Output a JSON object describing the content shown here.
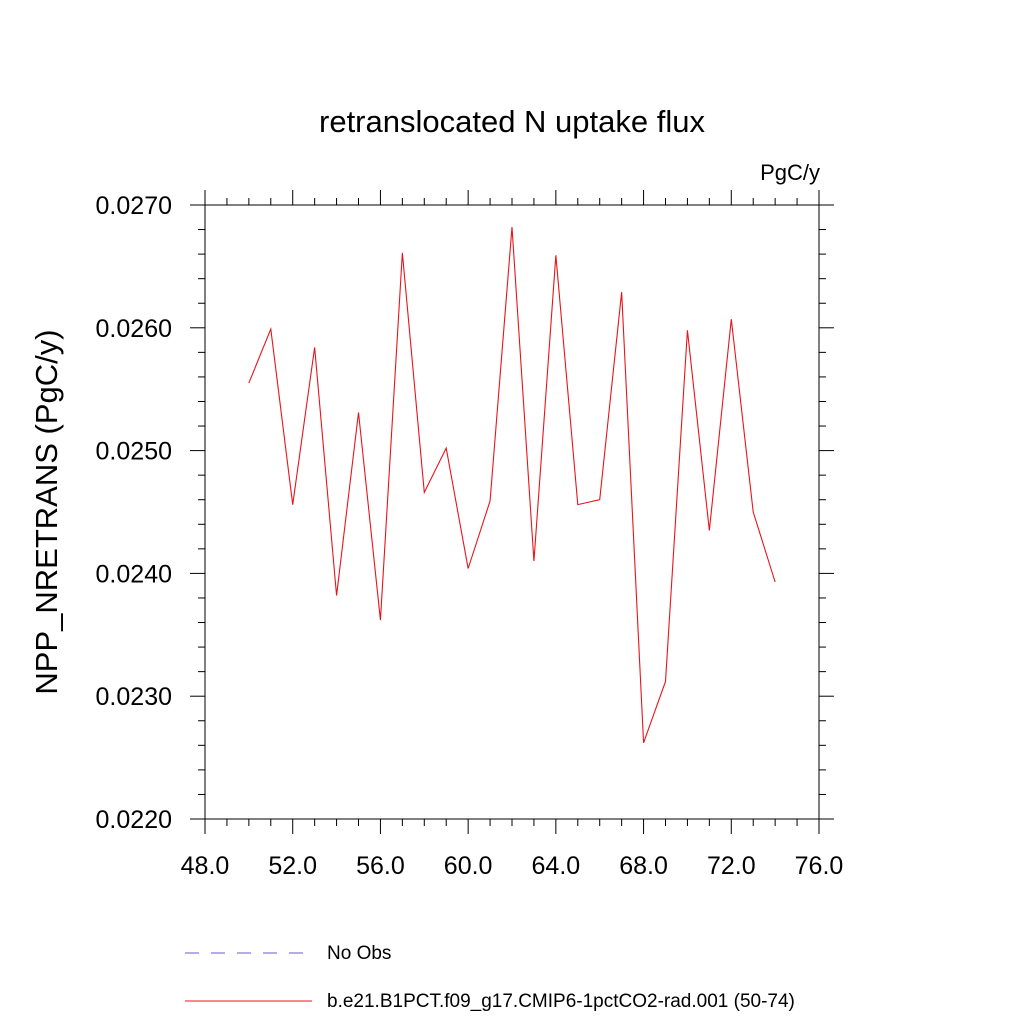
{
  "chart_data": {
    "type": "line",
    "title": "retranslocated N uptake flux",
    "units_label": "PgC/y",
    "ylabel": "NPP_NRETRANS  (PgC/y)",
    "xlabel": "",
    "xlim": [
      48,
      76
    ],
    "ylim": [
      0.022,
      0.027
    ],
    "x_ticks": [
      48,
      52,
      56,
      60,
      64,
      68,
      72,
      76
    ],
    "x_tick_labels": [
      "48.0",
      "52.0",
      "56.0",
      "60.0",
      "64.0",
      "68.0",
      "72.0",
      "76.0"
    ],
    "y_ticks": [
      0.022,
      0.023,
      0.024,
      0.025,
      0.026,
      0.027
    ],
    "y_tick_labels": [
      "0.0220",
      "0.0230",
      "0.0240",
      "0.0250",
      "0.0260",
      "0.0270"
    ],
    "grid": false,
    "legend_position": "bottom",
    "series": [
      {
        "name": "b.e21.B1PCT.f09_g17.CMIP6-1pctCO2-rad.001 (50-74)",
        "color": "#e8141b",
        "style": "solid",
        "x": [
          50,
          51,
          52,
          53,
          54,
          55,
          56,
          57,
          58,
          59,
          60,
          61,
          62,
          63,
          64,
          65,
          66,
          67,
          68,
          69,
          70,
          71,
          72,
          73,
          74
        ],
        "values": [
          0.02555,
          0.02599,
          0.02456,
          0.02584,
          0.02382,
          0.02531,
          0.02362,
          0.02661,
          0.02466,
          0.02502,
          0.02404,
          0.02459,
          0.02682,
          0.0241,
          0.02659,
          0.02456,
          0.0246,
          0.02629,
          0.02262,
          0.02312,
          0.02598,
          0.02435,
          0.02607,
          0.0245,
          0.02393
        ]
      }
    ],
    "legend": [
      {
        "label": "No Obs",
        "color": "#6a5acd",
        "style": "dashed"
      },
      {
        "label": "b.e21.B1PCT.f09_g17.CMIP6-1pctCO2-rad.001 (50-74)",
        "color": "#e8141b",
        "style": "solid"
      }
    ]
  }
}
